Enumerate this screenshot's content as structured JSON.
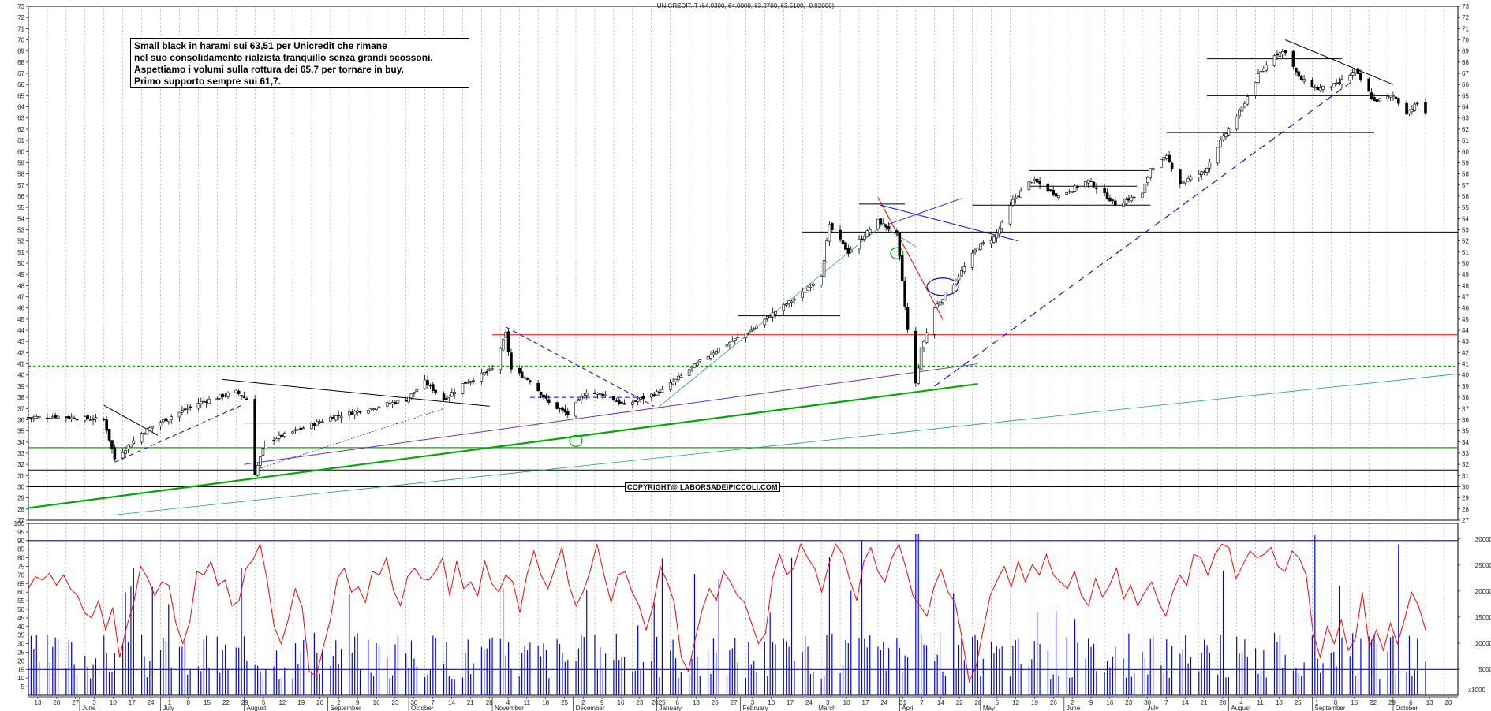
{
  "header": {
    "title": "UNICREDIT.IT (64.0300, 64.0000, 63.2700, 63.5100, -0.92000)"
  },
  "annotation": {
    "lines": [
      "Small black in harami sui 63,51 per Unicredit che rimane",
      "nel suo consolidamento rialzista tranquillo senza grandi scossoni.",
      "Aspettiamo i volumi sulla rottura dei 65,7 per tornare in buy.",
      "Primo supporto sempre sui 61,7."
    ]
  },
  "copyright": "COPYRIGHT@ LABORSADEIPICCOLI.COM",
  "colors": {
    "candle": "#000000",
    "support": "#000000",
    "resistance_red": "#ff0000",
    "green": "#00aa00",
    "blue": "#0000ff",
    "purple": "#7a2ab8",
    "teal": "#1aa070",
    "rsi": "#ff0000",
    "volume": "#0000ff"
  },
  "chart_data": [
    {
      "type": "candlestick",
      "title": "UNICREDIT.IT (64.0300, 64.0000, 63.2700, 63.5100, -0.92000)",
      "ylim": [
        27,
        73
      ],
      "y_ticks": [
        27,
        28,
        29,
        30,
        31,
        32,
        33,
        34,
        35,
        36,
        37,
        38,
        39,
        40,
        41,
        42,
        43,
        44,
        45,
        46,
        47,
        48,
        49,
        50,
        51,
        52,
        53,
        54,
        55,
        56,
        57,
        58,
        59,
        60,
        61,
        62,
        63,
        64,
        65,
        66,
        67,
        68,
        69,
        70,
        71,
        72,
        73
      ],
      "last_bar": {
        "open": 64.03,
        "high": 64.0,
        "low": 63.27,
        "close": 63.51,
        "change": -0.92
      },
      "x_day_ticks": [
        "13",
        "20",
        "27",
        "3",
        "10",
        "17",
        "24",
        "1",
        "8",
        "15",
        "22",
        "29",
        "5",
        "12",
        "19",
        "26",
        "2",
        "9",
        "16",
        "23",
        "30",
        "7",
        "14",
        "21",
        "28",
        "4",
        "11",
        "18",
        "25",
        "2",
        "9",
        "16",
        "23",
        "2025",
        "6",
        "13",
        "20",
        "27",
        "3",
        "10",
        "17",
        "24",
        "3",
        "10",
        "17",
        "24",
        "31",
        "7",
        "14",
        "22",
        "28",
        "5",
        "12",
        "19",
        "26",
        "2",
        "9",
        "16",
        "23",
        "30",
        "7",
        "14",
        "21",
        "28",
        "4",
        "11",
        "18",
        "25",
        "1",
        "8",
        "15",
        "22",
        "29",
        "6",
        "13",
        "20"
      ],
      "x_month_labels": [
        "June",
        "July",
        "August",
        "September",
        "October",
        "November",
        "December",
        "January",
        "February",
        "March",
        "April",
        "May",
        "June",
        "July",
        "August",
        "September",
        "October"
      ],
      "close_path": [
        [
          "2024-05-13",
          36.2
        ],
        [
          "2024-05-24",
          36.3
        ],
        [
          "2024-06-03",
          36.1
        ],
        [
          "2024-06-10",
          36.0
        ],
        [
          "2024-06-14",
          32.5
        ],
        [
          "2024-06-24",
          34.8
        ],
        [
          "2024-07-01",
          35.8
        ],
        [
          "2024-07-15",
          37.5
        ],
        [
          "2024-07-29",
          38.5
        ],
        [
          "2024-08-02",
          37.8
        ],
        [
          "2024-08-05",
          31.2
        ],
        [
          "2024-08-09",
          34.0
        ],
        [
          "2024-08-20",
          35.0
        ],
        [
          "2024-09-02",
          36.2
        ],
        [
          "2024-09-16",
          37.0
        ],
        [
          "2024-09-30",
          37.8
        ],
        [
          "2024-10-07",
          39.4
        ],
        [
          "2024-10-14",
          37.8
        ],
        [
          "2024-10-21",
          39.2
        ],
        [
          "2024-11-01",
          40.5
        ],
        [
          "2024-11-06",
          43.7
        ],
        [
          "2024-11-08",
          40.5
        ],
        [
          "2024-11-15",
          39.5
        ],
        [
          "2024-11-22",
          37.5
        ],
        [
          "2024-11-29",
          36.5
        ],
        [
          "2024-12-06",
          38.5
        ],
        [
          "2024-12-13",
          38.2
        ],
        [
          "2024-12-20",
          37.3
        ],
        [
          "2025-01-03",
          38.6
        ],
        [
          "2025-01-13",
          40.5
        ],
        [
          "2025-01-24",
          42.4
        ],
        [
          "2025-02-05",
          44.0
        ],
        [
          "2025-02-14",
          45.7
        ],
        [
          "2025-02-24",
          47.3
        ],
        [
          "2025-03-03",
          49.0
        ],
        [
          "2025-03-06",
          53.3
        ],
        [
          "2025-03-13",
          51.0
        ],
        [
          "2025-03-24",
          53.8
        ],
        [
          "2025-03-31",
          52.6
        ],
        [
          "2025-04-04",
          44.0
        ],
        [
          "2025-04-07",
          39.2
        ],
        [
          "2025-04-09",
          42.3
        ],
        [
          "2025-04-14",
          46.0
        ],
        [
          "2025-04-22",
          48.5
        ],
        [
          "2025-04-30",
          51.5
        ],
        [
          "2025-05-06",
          52.3
        ],
        [
          "2025-05-09",
          53.5
        ],
        [
          "2025-05-13",
          55.6
        ],
        [
          "2025-05-20",
          57.5
        ],
        [
          "2025-05-30",
          56.0
        ],
        [
          "2025-06-10",
          57.4
        ],
        [
          "2025-06-20",
          55.3
        ],
        [
          "2025-06-30",
          56.2
        ],
        [
          "2025-07-03",
          58.5
        ],
        [
          "2025-07-09",
          59.5
        ],
        [
          "2025-07-14",
          57.2
        ],
        [
          "2025-07-23",
          58.2
        ],
        [
          "2025-07-28",
          60.5
        ],
        [
          "2025-08-05",
          63.5
        ],
        [
          "2025-08-12",
          66.8
        ],
        [
          "2025-08-18",
          68.7
        ],
        [
          "2025-08-22",
          69.0
        ],
        [
          "2025-08-27",
          66.6
        ],
        [
          "2025-09-03",
          65.6
        ],
        [
          "2025-09-10",
          66.0
        ],
        [
          "2025-09-17",
          67.2
        ],
        [
          "2025-09-24",
          64.5
        ],
        [
          "2025-10-01",
          65.0
        ],
        [
          "2025-10-06",
          63.5
        ],
        [
          "2025-10-10",
          64.3
        ],
        [
          "2025-10-13",
          63.51
        ]
      ],
      "levels": [
        {
          "price": 40.8,
          "style": "dashed",
          "color": "#00aa00"
        },
        {
          "price": 43.6,
          "style": "solid",
          "color": "#ff0000"
        },
        {
          "price": 52.8,
          "style": "solid",
          "color": "#000000"
        },
        {
          "price": 61.7,
          "style": "solid",
          "color": "#000000"
        },
        {
          "price": 65.0,
          "style": "solid",
          "color": "#000000"
        },
        {
          "price": 68.3,
          "style": "solid",
          "color": "#000000"
        },
        {
          "price": 35.7,
          "style": "solid",
          "color": "#000000"
        },
        {
          "price": 33.5,
          "style": "solid",
          "color": "#00aa00"
        },
        {
          "price": 31.5,
          "style": "solid",
          "color": "#000000"
        },
        {
          "price": 30.0,
          "style": "solid",
          "color": "#000000"
        }
      ]
    },
    {
      "type": "line",
      "name_on_chart": "",
      "ylim": [
        0,
        100
      ],
      "y_ticks": [
        5,
        10,
        15,
        20,
        25,
        30,
        35,
        40,
        45,
        50,
        55,
        60,
        65,
        70,
        75,
        80,
        85,
        90,
        95,
        100
      ],
      "overbought": 90,
      "oversold": 15,
      "values": [
        62,
        69,
        67,
        71,
        64,
        70,
        62,
        58,
        48,
        45,
        55,
        38,
        51,
        22,
        40,
        54,
        75,
        68,
        58,
        66,
        64,
        42,
        30,
        43,
        72,
        70,
        78,
        64,
        67,
        52,
        55,
        74,
        79,
        88,
        67,
        40,
        30,
        44,
        62,
        51,
        14,
        11,
        28,
        44,
        68,
        74,
        60,
        63,
        54,
        72,
        70,
        80,
        61,
        52,
        69,
        74,
        68,
        67,
        72,
        80,
        58,
        78,
        62,
        66,
        58,
        78,
        65,
        60,
        70,
        66,
        48,
        70,
        84,
        70,
        62,
        74,
        86,
        64,
        52,
        60,
        72,
        88,
        70,
        54,
        70,
        72,
        60,
        52,
        38,
        52,
        75,
        66,
        54,
        22,
        14,
        33,
        50,
        62,
        55,
        72,
        66,
        58,
        54,
        42,
        30,
        36,
        68,
        82,
        70,
        74,
        88,
        80,
        74,
        60,
        76,
        88,
        82,
        67,
        55,
        78,
        86,
        72,
        66,
        80,
        88,
        74,
        58,
        52,
        46,
        63,
        73,
        60,
        54,
        33,
        8,
        17,
        38,
        58,
        67,
        75,
        63,
        78,
        66,
        76,
        70,
        82,
        70,
        66,
        62,
        72,
        58,
        52,
        68,
        57,
        64,
        74,
        56,
        64,
        52,
        60,
        66,
        54,
        46,
        60,
        70,
        64,
        82,
        80,
        70,
        82,
        88,
        86,
        68,
        76,
        84,
        80,
        82,
        86,
        75,
        72,
        84,
        80,
        70,
        36,
        22,
        40,
        30,
        44,
        26,
        33,
        60,
        28,
        38,
        26,
        42,
        30,
        44,
        60,
        52,
        38
      ],
      "volume_axis_ticks": [
        5000,
        10000,
        15000,
        20000,
        25000,
        30000
      ],
      "volume_axis_labels": [
        "5000",
        "10000",
        "15000",
        "20000",
        "25000",
        "30000"
      ],
      "volume_units_label": "x1000"
    }
  ]
}
